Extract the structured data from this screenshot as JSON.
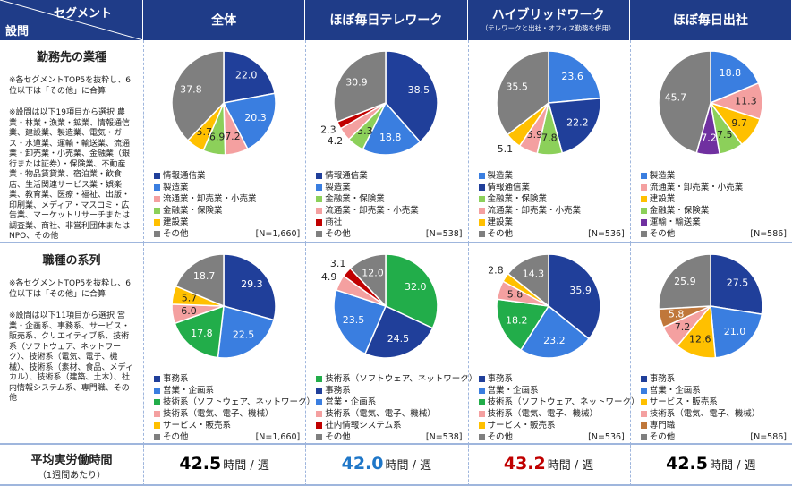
{
  "header": {
    "corner_top": "セグメント",
    "corner_bottom": "設問",
    "columns": [
      {
        "title": "全体"
      },
      {
        "title": "ほぼ毎日テレワーク"
      },
      {
        "title": "ハイブリッドワーク",
        "subtitle": "（テレワークと出社・オフィス勤務を併用）"
      },
      {
        "title": "ほぼ毎日出社"
      }
    ]
  },
  "rows": [
    {
      "title": "勤務先の業種",
      "notes": [
        "※各セグメントTOP5を抜粋し、6位以下は「その他」に合算",
        "※設問は以下19項目から選択 農業・林業・漁業・鉱業、情報通信業、建設業、製造業、電気・ガス・水道業、運輸・輸送業、流通業・卸売業・小売業、金融業（銀行または証券）・保険業、不動産業・物品賃貸業、宿泊業・飲食店、生活関連サービス業・娯楽業、教育業、医療・福祉、出版・印刷業、メディア・マスコミ・広告業、マーケットリサーチまたは調査業、商社、非営利団体またはNPO、その他"
      ],
      "cells": [
        {
          "type": "pie",
          "n_label": "[N=1,660]",
          "slices": [
            {
              "name": "情報通信業",
              "value": 22.0,
              "value_label": "22.0",
              "color": "#203f9a"
            },
            {
              "name": "製造業",
              "value": 20.3,
              "color": "#3a7ee0"
            },
            {
              "name": "流通業・卸売業・小売業",
              "value": 7.2,
              "color": "#f4a0a0"
            },
            {
              "name": "金融業・保険業",
              "value": 6.9,
              "color": "#8cd05a"
            },
            {
              "name": "建設業",
              "value": 5.7,
              "color": "#ffc000"
            },
            {
              "name": "その他",
              "value": 37.8,
              "color": "#7f7f7f"
            }
          ]
        },
        {
          "type": "pie",
          "n_label": "[N=538]",
          "slices": [
            {
              "name": "情報通信業",
              "value": 38.5,
              "color": "#203f9a"
            },
            {
              "name": "製造業",
              "value": 18.8,
              "color": "#3a7ee0"
            },
            {
              "name": "金融業・保険業",
              "value": 5.3,
              "color": "#8cd05a"
            },
            {
              "name": "流通業・卸売業・小売業",
              "value": 4.2,
              "color": "#f4a0a0"
            },
            {
              "name": "商社",
              "value": 2.3,
              "color": "#c00000"
            },
            {
              "name": "その他",
              "value": 30.9,
              "color": "#7f7f7f"
            }
          ]
        },
        {
          "type": "pie",
          "n_label": "[N=536]",
          "slices": [
            {
              "name": "製造業",
              "value": 23.6,
              "color": "#3a7ee0"
            },
            {
              "name": "情報通信業",
              "value": 22.2,
              "color": "#203f9a"
            },
            {
              "name": "金融業・保険業",
              "value": 7.8,
              "color": "#8cd05a"
            },
            {
              "name": "流通業・卸売業・小売業",
              "value": 5.9,
              "color": "#f4a0a0"
            },
            {
              "name": "建設業",
              "value": 5.1,
              "color": "#ffc000"
            },
            {
              "name": "その他",
              "value": 35.5,
              "color": "#7f7f7f"
            }
          ]
        },
        {
          "type": "pie",
          "n_label": "[N=586]",
          "slices": [
            {
              "name": "製造業",
              "value": 18.8,
              "color": "#3a7ee0"
            },
            {
              "name": "流通業・卸売業・小売業",
              "value": 11.3,
              "color": "#f4a0a0"
            },
            {
              "name": "建設業",
              "value": 9.7,
              "color": "#ffc000"
            },
            {
              "name": "金融業・保険業",
              "value": 7.5,
              "color": "#8cd05a"
            },
            {
              "name": "運輸・輸送業",
              "value": 7.2,
              "color": "#7030a0"
            },
            {
              "name": "その他",
              "value": 45.7,
              "color": "#7f7f7f"
            }
          ]
        }
      ]
    },
    {
      "title": "職種の系列",
      "notes": [
        "※各セグメントTOP5を抜粋し、6位以下は「その他」に合算",
        "※設問は以下11項目から選択 営業・企画系、事務系、サービス・販売系、クリエイティブ系、技術系（ソフトウェア、ネットワーク）、技術系（電気、電子、機械）、技術系（素材、食品、メディカル）、技術系（建築、土木）、社内情報システム系、専門職、その他"
      ],
      "cells": [
        {
          "type": "pie",
          "n_label": "[N=1,660]",
          "slices": [
            {
              "name": "事務系",
              "value": 29.3,
              "color": "#203f9a"
            },
            {
              "name": "営業・企画系",
              "value": 22.5,
              "color": "#3a7ee0"
            },
            {
              "name": "技術系（ソフトウェア、ネットワーク）",
              "value": 17.8,
              "color": "#22ad4a"
            },
            {
              "name": "技術系（電気、電子、機械）",
              "value": 6.0,
              "value_label": "6.0",
              "color": "#f4a0a0"
            },
            {
              "name": "サービス・販売系",
              "value": 5.7,
              "color": "#ffc000"
            },
            {
              "name": "その他",
              "value": 18.7,
              "color": "#7f7f7f"
            }
          ]
        },
        {
          "type": "pie",
          "n_label": "[N=538]",
          "slices": [
            {
              "name": "技術系（ソフトウェア、ネットワーク）",
              "value": 32.0,
              "value_label": "32.0",
              "color": "#22ad4a"
            },
            {
              "name": "事務系",
              "value": 24.5,
              "color": "#203f9a"
            },
            {
              "name": "営業・企画系",
              "value": 23.5,
              "color": "#3a7ee0"
            },
            {
              "name": "技術系（電気、電子、機械）",
              "value": 4.9,
              "color": "#f4a0a0"
            },
            {
              "name": "社内情報システム系",
              "value": 3.1,
              "color": "#c00000"
            },
            {
              "name": "その他",
              "value": 12.0,
              "value_label": "12.0",
              "color": "#7f7f7f"
            }
          ]
        },
        {
          "type": "pie",
          "n_label": "[N=536]",
          "slices": [
            {
              "name": "事務系",
              "value": 35.9,
              "color": "#203f9a"
            },
            {
              "name": "営業・企画系",
              "value": 23.2,
              "color": "#3a7ee0"
            },
            {
              "name": "技術系（ソフトウェア、ネットワーク）",
              "value": 18.2,
              "color": "#22ad4a"
            },
            {
              "name": "技術系（電気、電子、機械）",
              "value": 5.8,
              "color": "#f4a0a0"
            },
            {
              "name": "サービス・販売系",
              "value": 2.8,
              "color": "#ffc000"
            },
            {
              "name": "その他",
              "value": 14.3,
              "color": "#7f7f7f"
            }
          ]
        },
        {
          "type": "pie",
          "n_label": "[N=586]",
          "slices": [
            {
              "name": "事務系",
              "value": 27.5,
              "color": "#203f9a"
            },
            {
              "name": "営業・企画系",
              "value": 21.0,
              "value_label": "21.0",
              "color": "#3a7ee0"
            },
            {
              "name": "サービス・販売系",
              "value": 12.6,
              "color": "#ffc000"
            },
            {
              "name": "技術系（電気、電子、機械）",
              "value": 7.2,
              "color": "#f4a0a0"
            },
            {
              "name": "専門職",
              "value": 5.8,
              "color": "#c0773a"
            },
            {
              "name": "その他",
              "value": 25.9,
              "color": "#7f7f7f"
            }
          ]
        }
      ]
    },
    {
      "title": "平均実労働時間",
      "subtitle": "（1週間あたり）",
      "cells": [
        {
          "type": "figure",
          "value": 42.5,
          "unit": "時間 / 週",
          "color": "#000000"
        },
        {
          "type": "figure",
          "value": 42.0,
          "value_label": "42.0",
          "unit": "時間 / 週",
          "color": "#1f77c8"
        },
        {
          "type": "figure",
          "value": 43.2,
          "unit": "時間 / 週",
          "color": "#c00000"
        },
        {
          "type": "figure",
          "value": 42.5,
          "unit": "時間 / 週",
          "color": "#000000"
        }
      ]
    }
  ]
}
